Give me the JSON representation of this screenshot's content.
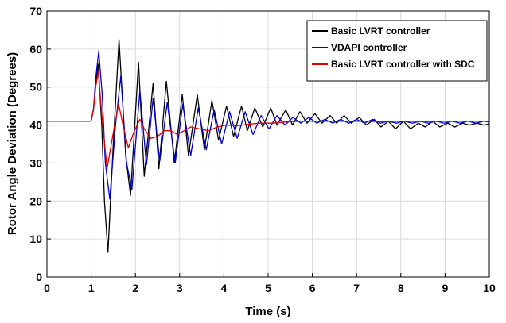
{
  "chart_data": {
    "type": "line",
    "xlabel": "Time (s)",
    "ylabel": "Rotor Angle Deviation (Degrees)",
    "xlim": [
      0,
      10
    ],
    "ylim": [
      0,
      70
    ],
    "xticks": [
      0,
      1,
      2,
      3,
      4,
      5,
      6,
      7,
      8,
      9,
      10
    ],
    "yticks": [
      0,
      10,
      20,
      30,
      40,
      50,
      60,
      70
    ],
    "grid": true,
    "legend_position": "top-right",
    "series": [
      {
        "name": "Basic LVRT controller",
        "color": "#000000",
        "x": [
          0,
          1.0,
          1.05,
          1.1,
          1.16,
          1.24,
          1.3,
          1.38,
          1.5,
          1.63,
          1.78,
          1.89,
          2.07,
          2.2,
          2.4,
          2.53,
          2.7,
          2.88,
          3.06,
          3.2,
          3.4,
          3.56,
          3.73,
          3.88,
          4.06,
          4.22,
          4.4,
          4.53,
          4.7,
          4.88,
          5.06,
          5.2,
          5.4,
          5.55,
          5.72,
          5.88,
          6.06,
          6.22,
          6.4,
          6.55,
          6.72,
          6.88,
          7.06,
          7.22,
          7.4,
          7.55,
          7.72,
          7.88,
          8.06,
          8.22,
          8.4,
          8.55,
          8.72,
          8.88,
          9.06,
          9.22,
          9.4,
          9.55,
          9.72,
          9.88,
          10.0
        ],
        "y": [
          41,
          41,
          44,
          50,
          56,
          40,
          20,
          6.5,
          35,
          62.5,
          32,
          21.5,
          56.5,
          26.5,
          51,
          28.5,
          51.5,
          30,
          48,
          32,
          48,
          33.5,
          46.5,
          36,
          45,
          37,
          45,
          38.5,
          44.5,
          39.5,
          44.5,
          40,
          44,
          40,
          43.5,
          40.5,
          43,
          40.5,
          42.5,
          40.5,
          42.5,
          40.5,
          42,
          40,
          41.5,
          39.5,
          41,
          39,
          41,
          39,
          40.5,
          39.5,
          41,
          39.5,
          40.5,
          39.5,
          40.5,
          40,
          40.5,
          40,
          40.3
        ]
      },
      {
        "name": "VDAPI controller",
        "color": "#0000cc",
        "x": [
          0,
          1.0,
          1.05,
          1.1,
          1.17,
          1.25,
          1.32,
          1.42,
          1.55,
          1.67,
          1.8,
          1.92,
          2.1,
          2.25,
          2.4,
          2.55,
          2.72,
          2.9,
          3.07,
          3.25,
          3.42,
          3.6,
          3.78,
          3.95,
          4.13,
          4.3,
          4.48,
          4.66,
          4.84,
          5.02,
          5.2,
          5.38,
          5.56,
          5.74,
          5.92,
          6.1,
          6.28,
          6.46,
          6.64,
          6.82,
          7.0,
          7.18,
          7.36,
          7.54,
          7.72,
          7.9,
          8.08,
          8.26,
          8.44,
          8.62,
          8.8,
          8.98,
          9.16,
          9.34,
          9.52,
          9.7,
          9.88,
          10.0
        ],
        "y": [
          41,
          41,
          44,
          52,
          59.5,
          48,
          30,
          20.5,
          40,
          53,
          30,
          23,
          49,
          29.5,
          47,
          30.5,
          46,
          30,
          45.5,
          32,
          44.5,
          33.5,
          44,
          35,
          43.5,
          36.5,
          43.5,
          37.5,
          42.5,
          39,
          42.5,
          40,
          42,
          40.5,
          42,
          40.5,
          41.5,
          40.5,
          41.5,
          40.5,
          41.5,
          40.5,
          41.5,
          40.5,
          41,
          40.5,
          41,
          40.5,
          41,
          40.5,
          41,
          40.5,
          41,
          40.5,
          41,
          40.5,
          41,
          40.8
        ]
      },
      {
        "name": "Basic LVRT controller with SDC",
        "color": "#e00000",
        "x": [
          0,
          1.0,
          1.05,
          1.1,
          1.16,
          1.26,
          1.36,
          1.5,
          1.62,
          1.72,
          1.84,
          1.96,
          2.1,
          2.2,
          2.35,
          2.5,
          2.65,
          2.8,
          2.95,
          3.1,
          3.25,
          3.45,
          3.65,
          3.85,
          4.05,
          4.3,
          4.55,
          4.8,
          5.1,
          5.4,
          5.7,
          6.0,
          6.4,
          6.8,
          7.2,
          7.6,
          8.0,
          8.5,
          9.0,
          9.5,
          10.0
        ],
        "y": [
          41,
          41,
          44,
          50,
          54,
          40,
          28.5,
          38,
          45.5,
          40,
          34,
          38,
          41.5,
          39,
          36.5,
          37,
          38.5,
          38.5,
          37.5,
          38.5,
          39.5,
          39,
          38.5,
          39.5,
          40,
          39.8,
          40.2,
          40.5,
          40.5,
          40.8,
          41,
          41,
          41,
          41,
          41,
          40.9,
          41,
          40.9,
          41,
          41,
          41
        ]
      }
    ]
  }
}
